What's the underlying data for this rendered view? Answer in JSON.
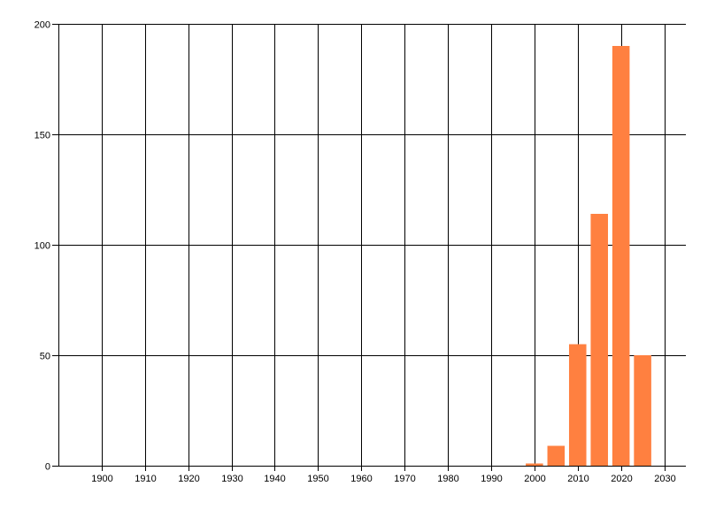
{
  "chart_data": {
    "type": "bar",
    "title": "",
    "xlabel": "",
    "ylabel": "",
    "x": [
      2000,
      2005,
      2010,
      2015,
      2020,
      2025
    ],
    "values": [
      1,
      9,
      55,
      114,
      190,
      50
    ],
    "bar_width_years": 4,
    "xlim": [
      1890,
      2035
    ],
    "ylim": [
      0,
      200
    ],
    "xticks": [
      1900,
      1910,
      1920,
      1930,
      1940,
      1950,
      1960,
      1970,
      1980,
      1990,
      2000,
      2010,
      2020,
      2030
    ],
    "yticks": [
      0,
      50,
      100,
      150,
      200
    ],
    "grid": true,
    "legend": "none",
    "colors": {
      "bar": "#FF8040",
      "grid": "#000000",
      "background": "#FFFFFF"
    }
  }
}
